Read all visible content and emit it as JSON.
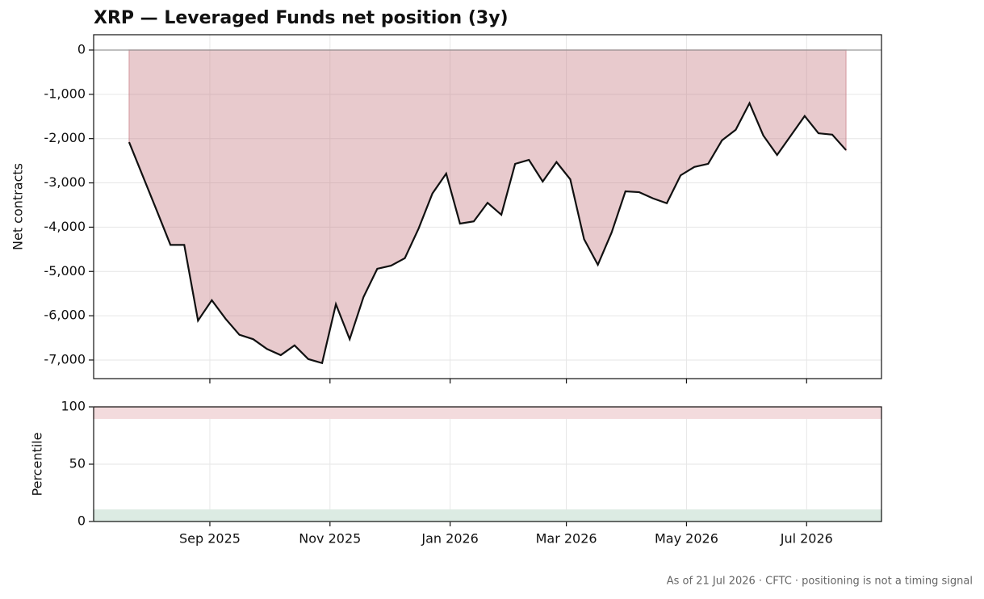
{
  "chart_data": [
    {
      "type": "area",
      "title": "XRP — Leveraged Funds net position (3y)",
      "ylabel": "Net contracts",
      "x": [
        "2025-07-22",
        "2025-07-29",
        "2025-08-05",
        "2025-08-12",
        "2025-08-19",
        "2025-08-26",
        "2025-09-02",
        "2025-09-09",
        "2025-09-16",
        "2025-09-23",
        "2025-09-30",
        "2025-10-07",
        "2025-10-14",
        "2025-10-21",
        "2025-10-28",
        "2025-11-04",
        "2025-11-11",
        "2025-11-18",
        "2025-11-25",
        "2025-12-02",
        "2025-12-09",
        "2025-12-16",
        "2025-12-23",
        "2025-12-30",
        "2026-01-06",
        "2026-01-13",
        "2026-01-20",
        "2026-01-27",
        "2026-02-03",
        "2026-02-10",
        "2026-02-17",
        "2026-02-24",
        "2026-03-03",
        "2026-03-10",
        "2026-03-17",
        "2026-03-24",
        "2026-03-31",
        "2026-04-07",
        "2026-04-14",
        "2026-04-21",
        "2026-04-28",
        "2026-05-05",
        "2026-05-12",
        "2026-05-19",
        "2026-05-26",
        "2026-06-02",
        "2026-06-09",
        "2026-06-16",
        "2026-06-23",
        "2026-06-30",
        "2026-07-07",
        "2026-07-14",
        "2026-07-21"
      ],
      "values": [
        -2080,
        -2850,
        -3620,
        -4400,
        -4400,
        -6110,
        -5650,
        -6070,
        -6430,
        -6530,
        -6750,
        -6890,
        -6670,
        -6980,
        -7070,
        -5740,
        -6530,
        -5580,
        -4940,
        -4870,
        -4700,
        -4030,
        -3240,
        -2790,
        -3920,
        -3870,
        -3450,
        -3720,
        -2570,
        -2480,
        -2970,
        -2530,
        -2920,
        -4270,
        -4850,
        -4120,
        -3190,
        -3210,
        -3350,
        -3460,
        -2830,
        -2640,
        -2570,
        -2040,
        -1800,
        -1200,
        -1930,
        -2370,
        -1930,
        -1490,
        -1880,
        -1910,
        -2260
      ],
      "line_color": "#111111",
      "fill_color": "#c98089",
      "xlim": [
        "2025-07-04",
        "2026-08-08"
      ],
      "xticks": [
        {
          "value": "2025-09-01",
          "label": "Sep 2025"
        },
        {
          "value": "2025-11-01",
          "label": "Nov 2025"
        },
        {
          "value": "2026-01-01",
          "label": "Jan 2026"
        },
        {
          "value": "2026-03-01",
          "label": "Mar 2026"
        },
        {
          "value": "2026-05-01",
          "label": "May 2026"
        },
        {
          "value": "2026-07-01",
          "label": "Jul 2026"
        }
      ],
      "ylim": [
        -7420,
        346
      ],
      "yticks": [
        {
          "value": -7000,
          "label": "-7,000"
        },
        {
          "value": -6000,
          "label": "-6,000"
        },
        {
          "value": -5000,
          "label": "-5,000"
        },
        {
          "value": -4000,
          "label": "-4,000"
        },
        {
          "value": -3000,
          "label": "-3,000"
        },
        {
          "value": -2000,
          "label": "-2,000"
        },
        {
          "value": -1000,
          "label": "-1,000"
        },
        0
      ],
      "grid": true
    },
    {
      "type": "bands",
      "ylabel": "Percentile",
      "ylim": [
        0,
        100
      ],
      "yticks": [
        0,
        50,
        100
      ],
      "bands": [
        {
          "from": 90,
          "to": 100,
          "color": "#f3dbdd"
        },
        {
          "from": 0,
          "to": 10,
          "color": "#dcebe3"
        }
      ],
      "grid": true
    }
  ],
  "footnote": "As of 21 Jul 2026 · CFTC · positioning is not a timing signal"
}
